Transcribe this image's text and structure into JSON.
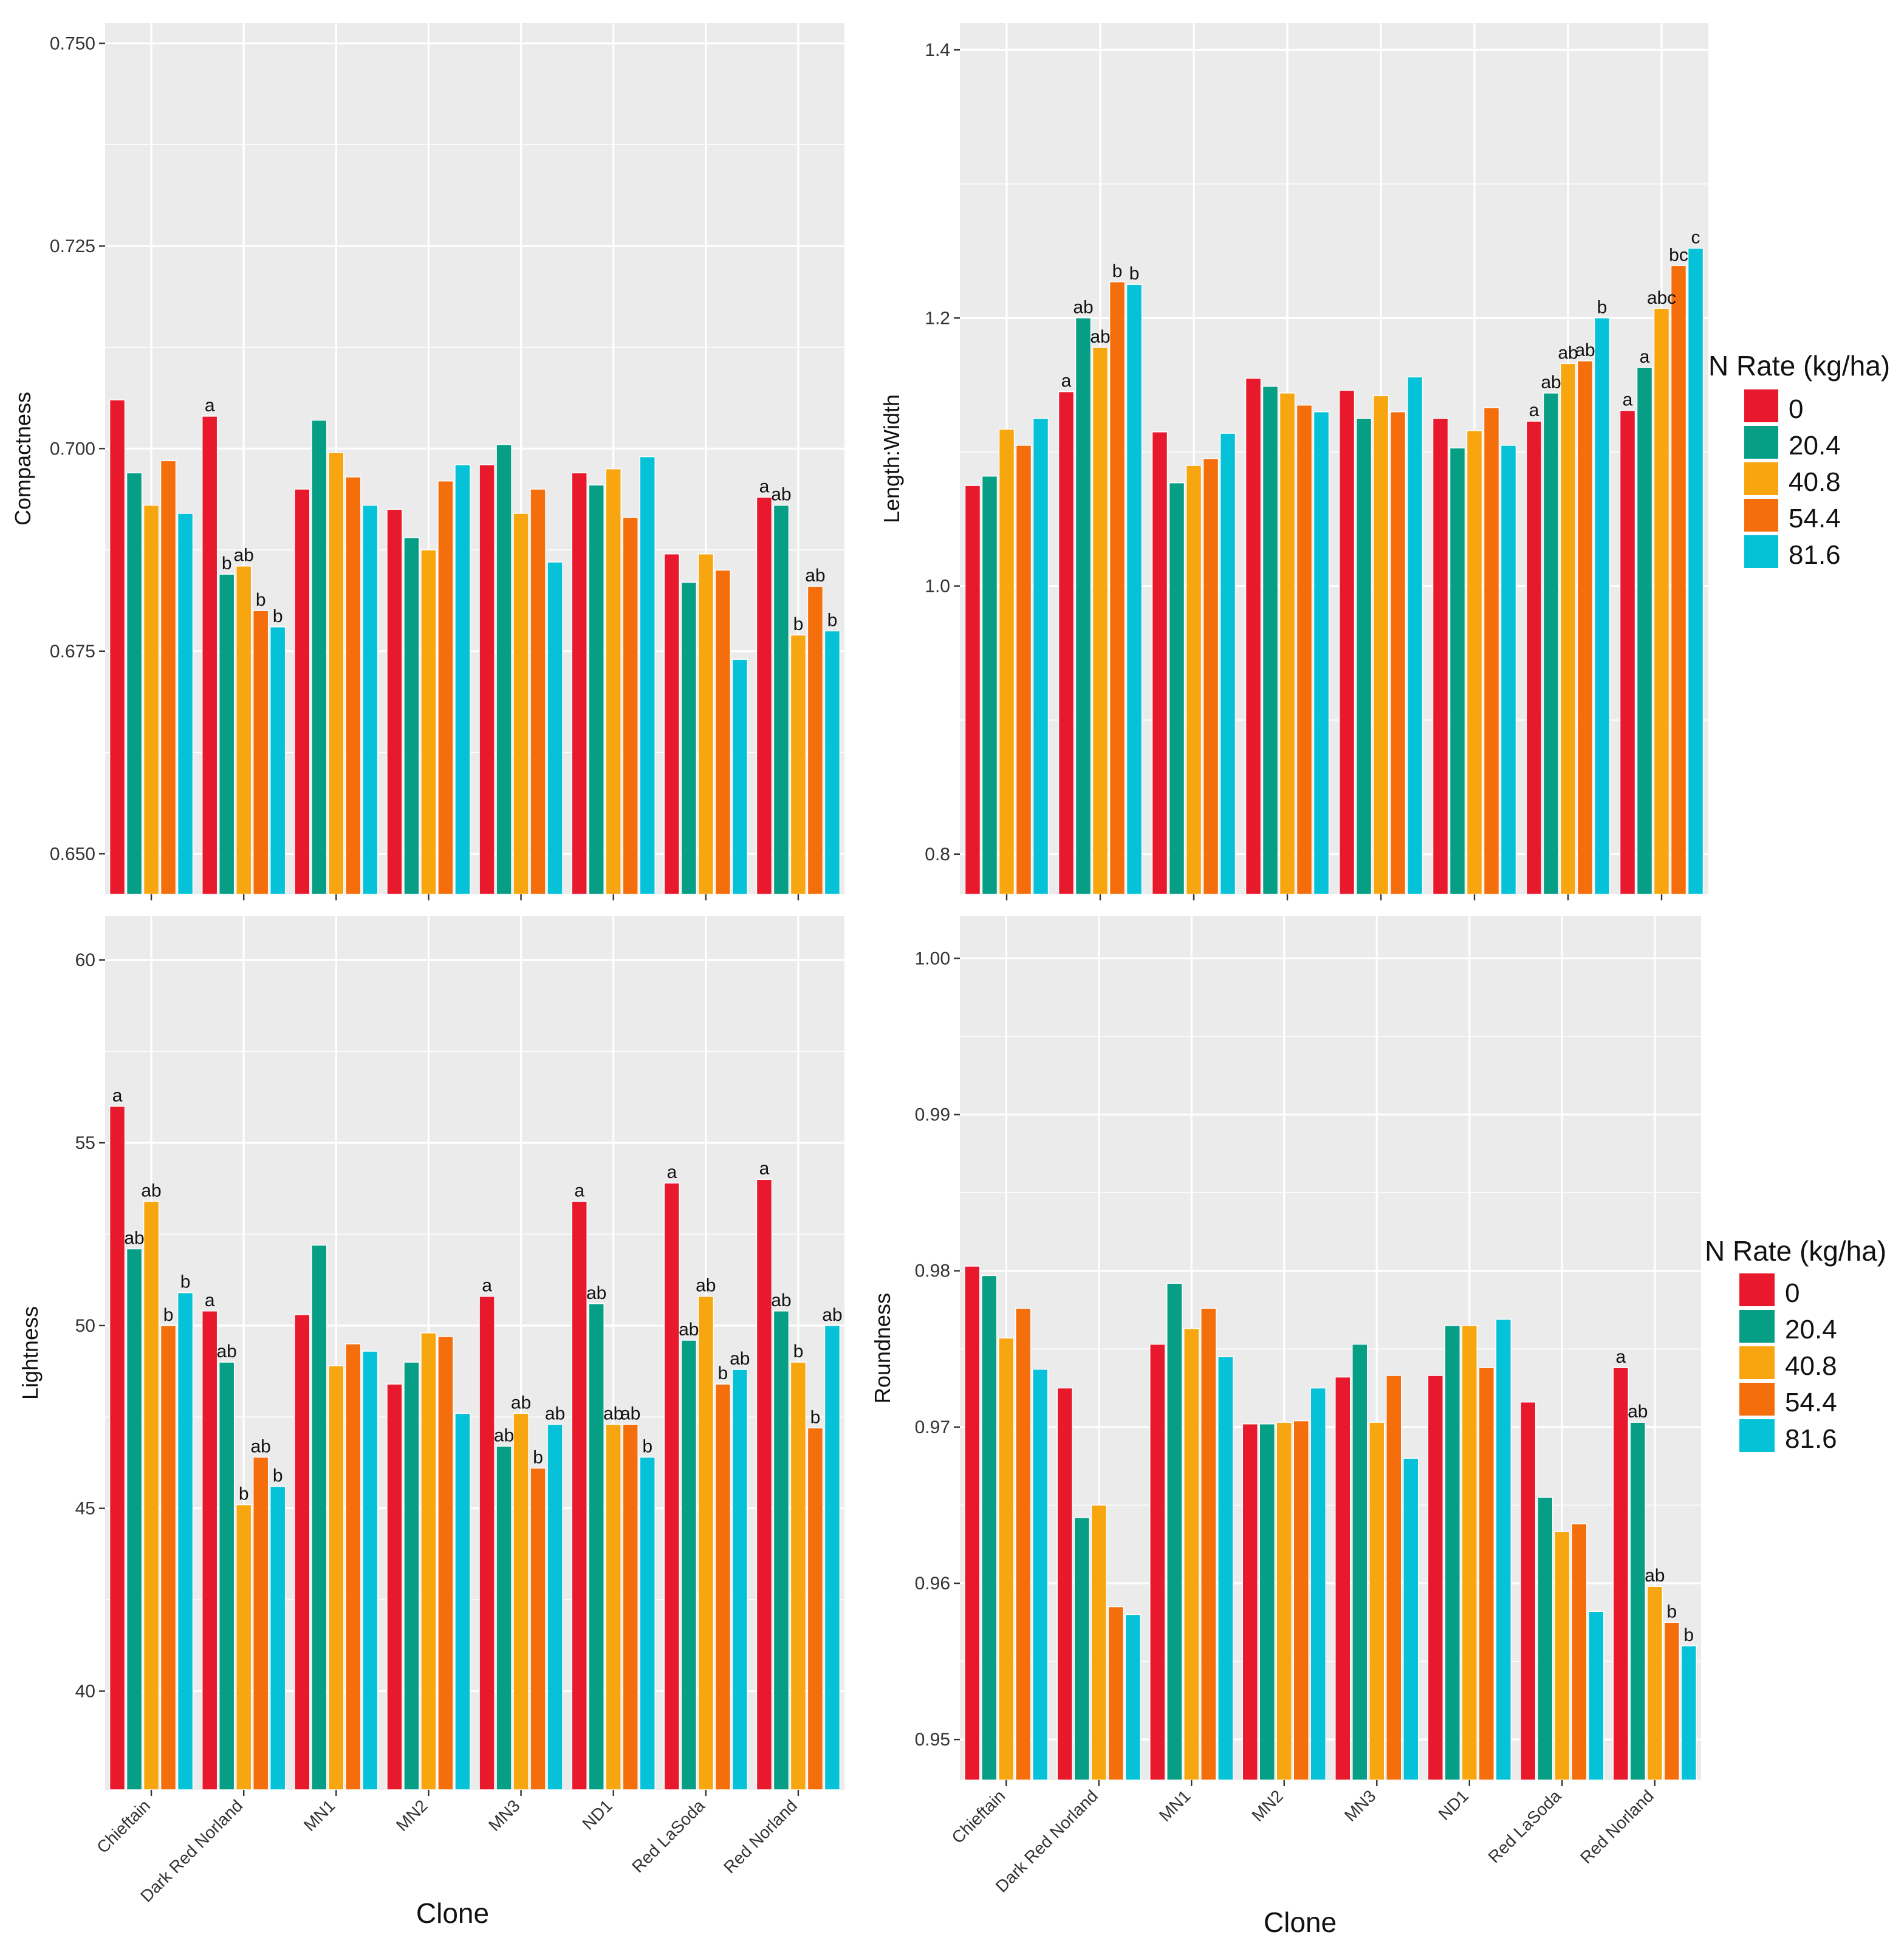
{
  "figure": {
    "x_axis_title": "Clone",
    "legend_title": "N Rate (kg/ha)"
  },
  "colors": {
    "panel_bg": "#EBEBEB",
    "grid": "#FFFFFF",
    "series": [
      "#E8192C",
      "#079E86",
      "#F7A60F",
      "#F56E0C",
      "#06C2D9"
    ]
  },
  "chart_data": [
    {
      "id": "compactness",
      "type": "bar",
      "title": "",
      "xlabel": "",
      "ylabel": "Compactness",
      "ylim": [
        0.645,
        0.7525
      ],
      "yticks": [
        "0.650",
        "0.675",
        "0.700",
        "0.725",
        "0.750"
      ],
      "ytick_values": [
        0.65,
        0.675,
        0.7,
        0.725,
        0.75
      ],
      "show_x_tick_labels": false,
      "categories": [
        "Chieftain",
        "Dark Red Norland",
        "MN1",
        "MN2",
        "MN3",
        "ND1",
        "Red LaSoda",
        "Red Norland"
      ],
      "series": [
        {
          "name": "0",
          "values": [
            0.706,
            0.704,
            0.695,
            0.6925,
            0.698,
            0.697,
            0.687,
            0.694
          ]
        },
        {
          "name": "20.4",
          "values": [
            0.697,
            0.6845,
            0.7035,
            0.689,
            0.7005,
            0.6955,
            0.6835,
            0.693
          ]
        },
        {
          "name": "40.8",
          "values": [
            0.693,
            0.6855,
            0.6995,
            0.6875,
            0.692,
            0.6975,
            0.687,
            0.677
          ]
        },
        {
          "name": "54.4",
          "values": [
            0.6985,
            0.68,
            0.6965,
            0.696,
            0.695,
            0.6915,
            0.685,
            0.683
          ]
        },
        {
          "name": "81.6",
          "values": [
            0.692,
            0.678,
            0.693,
            0.698,
            0.686,
            0.699,
            0.674,
            0.6775
          ]
        }
      ],
      "annotations": [
        {
          "category": 1,
          "series": 0,
          "text": "a"
        },
        {
          "category": 1,
          "series": 1,
          "text": "b"
        },
        {
          "category": 1,
          "series": 2,
          "text": "ab"
        },
        {
          "category": 1,
          "series": 3,
          "text": "b"
        },
        {
          "category": 1,
          "series": 4,
          "text": "b"
        },
        {
          "category": 7,
          "series": 0,
          "text": "a"
        },
        {
          "category": 7,
          "series": 1,
          "text": "ab"
        },
        {
          "category": 7,
          "series": 2,
          "text": "b"
        },
        {
          "category": 7,
          "series": 3,
          "text": "ab"
        },
        {
          "category": 7,
          "series": 4,
          "text": "b"
        }
      ]
    },
    {
      "id": "length-width",
      "type": "bar",
      "title": "",
      "xlabel": "",
      "ylabel": "Length:Width",
      "ylim": [
        0.77,
        1.42
      ],
      "yticks": [
        "0.8",
        "1.0",
        "1.2",
        "1.4"
      ],
      "ytick_values": [
        0.8,
        1.0,
        1.2,
        1.4
      ],
      "show_x_tick_labels": false,
      "categories": [
        "Chieftain",
        "Dark Red Norland",
        "MN1",
        "MN2",
        "MN3",
        "ND1",
        "Red LaSoda",
        "Red Norland"
      ],
      "series": [
        {
          "name": "0",
          "values": [
            1.075,
            1.145,
            1.115,
            1.155,
            1.146,
            1.125,
            1.123,
            1.131
          ]
        },
        {
          "name": "20.4",
          "values": [
            1.082,
            1.2,
            1.077,
            1.149,
            1.125,
            1.103,
            1.144,
            1.163
          ]
        },
        {
          "name": "40.8",
          "values": [
            1.117,
            1.178,
            1.09,
            1.144,
            1.142,
            1.116,
            1.166,
            1.207
          ]
        },
        {
          "name": "54.4",
          "values": [
            1.105,
            1.227,
            1.095,
            1.135,
            1.13,
            1.133,
            1.168,
            1.239
          ]
        },
        {
          "name": "81.6",
          "values": [
            1.125,
            1.225,
            1.114,
            1.13,
            1.156,
            1.105,
            1.2,
            1.252
          ]
        }
      ],
      "annotations": [
        {
          "category": 1,
          "series": 0,
          "text": "a"
        },
        {
          "category": 1,
          "series": 1,
          "text": "ab"
        },
        {
          "category": 1,
          "series": 2,
          "text": "ab"
        },
        {
          "category": 1,
          "series": 3,
          "text": "b"
        },
        {
          "category": 1,
          "series": 4,
          "text": "b"
        },
        {
          "category": 6,
          "series": 0,
          "text": "a"
        },
        {
          "category": 6,
          "series": 1,
          "text": "ab"
        },
        {
          "category": 6,
          "series": 2,
          "text": "ab"
        },
        {
          "category": 6,
          "series": 3,
          "text": "ab"
        },
        {
          "category": 6,
          "series": 4,
          "text": "b"
        },
        {
          "category": 7,
          "series": 0,
          "text": "a"
        },
        {
          "category": 7,
          "series": 1,
          "text": "a"
        },
        {
          "category": 7,
          "series": 2,
          "text": "abc"
        },
        {
          "category": 7,
          "series": 3,
          "text": "bc"
        },
        {
          "category": 7,
          "series": 4,
          "text": "c"
        }
      ]
    },
    {
      "id": "lightness",
      "type": "bar",
      "title": "",
      "xlabel": "Clone",
      "ylabel": "Lightness",
      "ylim": [
        37.3,
        61.2
      ],
      "yticks": [
        "40",
        "45",
        "50",
        "55",
        "60"
      ],
      "ytick_values": [
        40,
        45,
        50,
        55,
        60
      ],
      "show_x_tick_labels": true,
      "categories": [
        "Chieftain",
        "Dark Red Norland",
        "MN1",
        "MN2",
        "MN3",
        "ND1",
        "Red LaSoda",
        "Red Norland"
      ],
      "series": [
        {
          "name": "0",
          "values": [
            56.0,
            50.4,
            50.3,
            48.4,
            50.8,
            53.4,
            53.9,
            54.0
          ]
        },
        {
          "name": "20.4",
          "values": [
            52.1,
            49.0,
            52.2,
            49.0,
            46.7,
            50.6,
            49.6,
            50.4
          ]
        },
        {
          "name": "40.8",
          "values": [
            53.4,
            45.1,
            48.9,
            49.8,
            47.6,
            47.3,
            50.8,
            49.0
          ]
        },
        {
          "name": "54.4",
          "values": [
            50.0,
            46.4,
            49.5,
            49.7,
            46.1,
            47.3,
            48.4,
            47.2
          ]
        },
        {
          "name": "81.6",
          "values": [
            50.9,
            45.6,
            49.3,
            47.6,
            47.3,
            46.4,
            48.8,
            50.0
          ]
        }
      ],
      "annotations": [
        {
          "category": 0,
          "series": 0,
          "text": "a"
        },
        {
          "category": 0,
          "series": 1,
          "text": "ab"
        },
        {
          "category": 0,
          "series": 2,
          "text": "ab"
        },
        {
          "category": 0,
          "series": 3,
          "text": "b"
        },
        {
          "category": 0,
          "series": 4,
          "text": "b"
        },
        {
          "category": 1,
          "series": 0,
          "text": "a"
        },
        {
          "category": 1,
          "series": 1,
          "text": "ab"
        },
        {
          "category": 1,
          "series": 2,
          "text": "b"
        },
        {
          "category": 1,
          "series": 3,
          "text": "ab"
        },
        {
          "category": 1,
          "series": 4,
          "text": "b"
        },
        {
          "category": 4,
          "series": 0,
          "text": "a"
        },
        {
          "category": 4,
          "series": 1,
          "text": "ab"
        },
        {
          "category": 4,
          "series": 2,
          "text": "ab"
        },
        {
          "category": 4,
          "series": 3,
          "text": "b"
        },
        {
          "category": 4,
          "series": 4,
          "text": "ab"
        },
        {
          "category": 5,
          "series": 0,
          "text": "a"
        },
        {
          "category": 5,
          "series": 1,
          "text": "ab"
        },
        {
          "category": 5,
          "series": 2,
          "text": "ab"
        },
        {
          "category": 5,
          "series": 3,
          "text": "ab"
        },
        {
          "category": 5,
          "series": 4,
          "text": "b"
        },
        {
          "category": 6,
          "series": 0,
          "text": "a"
        },
        {
          "category": 6,
          "series": 1,
          "text": "ab"
        },
        {
          "category": 6,
          "series": 2,
          "text": "ab"
        },
        {
          "category": 6,
          "series": 3,
          "text": "b"
        },
        {
          "category": 6,
          "series": 4,
          "text": "ab"
        },
        {
          "category": 7,
          "series": 0,
          "text": "a"
        },
        {
          "category": 7,
          "series": 1,
          "text": "ab"
        },
        {
          "category": 7,
          "series": 2,
          "text": "b"
        },
        {
          "category": 7,
          "series": 3,
          "text": "b"
        },
        {
          "category": 7,
          "series": 4,
          "text": "ab"
        }
      ]
    },
    {
      "id": "roundness",
      "type": "bar",
      "title": "",
      "xlabel": "Clone",
      "ylabel": "Roundness",
      "ylim": [
        0.9474,
        1.0027
      ],
      "yticks": [
        "0.95",
        "0.96",
        "0.97",
        "0.98",
        "0.99",
        "1.00"
      ],
      "ytick_values": [
        0.95,
        0.96,
        0.97,
        0.98,
        0.99,
        1.0
      ],
      "show_x_tick_labels": true,
      "categories": [
        "Chieftain",
        "Dark Red Norland",
        "MN1",
        "MN2",
        "MN3",
        "ND1",
        "Red LaSoda",
        "Red Norland"
      ],
      "series": [
        {
          "name": "0",
          "values": [
            0.9803,
            0.9725,
            0.9753,
            0.9702,
            0.9732,
            0.9733,
            0.9716,
            0.9738
          ]
        },
        {
          "name": "20.4",
          "values": [
            0.9797,
            0.9642,
            0.9792,
            0.9702,
            0.9753,
            0.9765,
            0.9655,
            0.9703
          ]
        },
        {
          "name": "40.8",
          "values": [
            0.9757,
            0.965,
            0.9763,
            0.9703,
            0.9703,
            0.9765,
            0.9633,
            0.9598
          ]
        },
        {
          "name": "54.4",
          "values": [
            0.9776,
            0.9585,
            0.9776,
            0.9704,
            0.9733,
            0.9738,
            0.9638,
            0.9575
          ]
        },
        {
          "name": "81.6",
          "values": [
            0.9737,
            0.958,
            0.9745,
            0.9725,
            0.968,
            0.9769,
            0.9582,
            0.956
          ]
        }
      ],
      "annotations": [
        {
          "category": 7,
          "series": 0,
          "text": "a"
        },
        {
          "category": 7,
          "series": 1,
          "text": "ab"
        },
        {
          "category": 7,
          "series": 2,
          "text": "ab"
        },
        {
          "category": 7,
          "series": 3,
          "text": "b"
        },
        {
          "category": 7,
          "series": 4,
          "text": "b"
        }
      ]
    }
  ]
}
